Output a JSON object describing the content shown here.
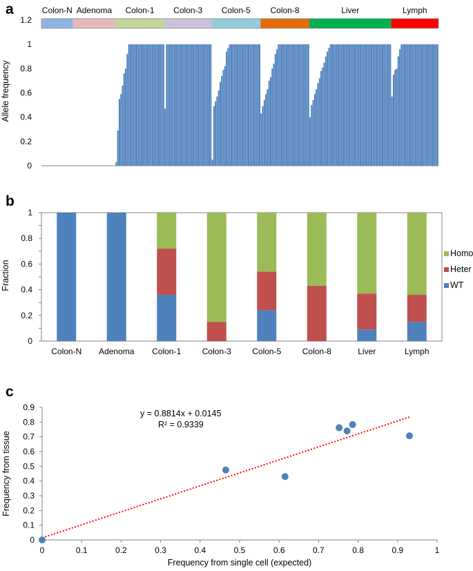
{
  "panel_labels": {
    "a": "a",
    "b": "b",
    "c": "c"
  },
  "chart_data": [
    {
      "type": "bar",
      "title": "",
      "ylabel": "Allele frequency",
      "xlabel": "",
      "ylim": [
        0,
        1.2
      ],
      "yticks": [
        "0",
        "0.2",
        "0.4",
        "0.6",
        "0.8",
        "1",
        "1.2"
      ],
      "groups": [
        {
          "name": "Colon-N",
          "color": "#8db3e2",
          "values": [
            0,
            0,
            0,
            0,
            0,
            0,
            0,
            0,
            0,
            0,
            0,
            0,
            0,
            0,
            0,
            0,
            0,
            0,
            0,
            0
          ]
        },
        {
          "name": "Adenoma",
          "color": "#e6b9b8",
          "values": [
            0,
            0,
            0,
            0,
            0,
            0,
            0,
            0,
            0,
            0,
            0,
            0,
            0,
            0,
            0,
            0,
            0,
            0,
            0,
            0,
            0,
            0,
            0,
            0,
            0,
            0,
            0
          ]
        },
        {
          "name": "Colon-1",
          "color": "#c3d69b",
          "values": [
            0.03,
            0.29,
            0.55,
            0.59,
            0.66,
            0.76,
            0.8,
            0.92,
            1,
            1,
            1,
            1,
            1,
            1,
            1,
            1,
            1,
            1,
            1,
            1,
            1,
            1,
            1,
            1,
            1,
            1,
            1,
            1,
            1,
            1,
            1
          ]
        },
        {
          "name": "Colon-3",
          "color": "#ccc0da",
          "values": [
            0.47,
            1,
            1,
            1,
            1,
            1,
            1,
            1,
            1,
            1,
            1,
            1,
            1,
            1,
            1,
            1,
            1,
            1,
            1,
            1,
            1,
            1,
            1,
            1,
            1,
            1,
            1,
            1,
            1,
            1
          ]
        },
        {
          "name": "Colon-5",
          "color": "#92cddc",
          "values": [
            0.05,
            0.49,
            0.53,
            0.57,
            0.62,
            0.69,
            0.74,
            0.79,
            0.82,
            0.94,
            0.97,
            1,
            1,
            1,
            1,
            1,
            1,
            1,
            1,
            1,
            1,
            1,
            1,
            1,
            1,
            1,
            1,
            1,
            1,
            1,
            1
          ]
        },
        {
          "name": "Colon-8",
          "color": "#e36c09",
          "values": [
            0.43,
            0.49,
            0.54,
            0.59,
            0.63,
            0.7,
            0.73,
            0.8,
            0.84,
            0.92,
            0.96,
            1,
            1,
            1,
            1,
            1,
            1,
            1,
            1,
            1,
            1,
            1,
            1,
            1,
            1,
            1,
            1,
            1,
            1,
            1,
            1
          ]
        },
        {
          "name": "Liver",
          "color": "#00b050",
          "values": [
            0.4,
            0.5,
            0.54,
            0.59,
            0.63,
            0.68,
            0.72,
            0.78,
            0.81,
            0.85,
            0.9,
            0.94,
            0.97,
            1,
            1,
            1,
            1,
            1,
            1,
            1,
            1,
            1,
            1,
            1,
            1,
            1,
            1,
            1,
            1,
            1,
            1,
            1,
            1,
            1,
            1,
            1,
            1,
            1,
            1,
            1,
            1,
            1,
            1,
            1,
            1,
            1,
            1,
            1,
            1,
            1,
            1,
            1
          ]
        },
        {
          "name": "Lymph",
          "color": "#ff0000",
          "values": [
            0.57,
            0.75,
            0.79,
            0.8,
            0.9,
            0.96,
            1,
            1,
            1,
            1,
            1,
            1,
            1,
            1,
            1,
            1,
            1,
            1,
            1,
            1,
            1,
            1,
            1,
            1,
            1,
            1,
            1,
            1,
            1,
            1
          ]
        }
      ]
    },
    {
      "type": "bar",
      "stacked": true,
      "title": "",
      "ylabel": "Fraction",
      "xlabel": "",
      "ylim": [
        0,
        1
      ],
      "yticks": [
        "0",
        "0.2",
        "0.4",
        "0.6",
        "0.8",
        "1"
      ],
      "categories": [
        "Colon-N",
        "Adenoma",
        "Colon-1",
        "Colon-3",
        "Colon-5",
        "Colon-8",
        "Liver",
        "Lymph"
      ],
      "series": [
        {
          "name": "WT",
          "color": "#4f81bd",
          "values": [
            1,
            1,
            0.36,
            0,
            0.24,
            0,
            0.09,
            0.15
          ]
        },
        {
          "name": "Heter",
          "color": "#c0504d",
          "values": [
            0,
            0,
            0.36,
            0.15,
            0.3,
            0.43,
            0.28,
            0.21
          ]
        },
        {
          "name": "Homo",
          "color": "#9bbb59",
          "values": [
            0,
            0,
            0.28,
            0.85,
            0.46,
            0.57,
            0.63,
            0.64
          ]
        }
      ],
      "legend": [
        "Homo",
        "Heter",
        "WT"
      ],
      "legend_position": "right"
    },
    {
      "type": "scatter",
      "title": "",
      "xlabel": "Frequency from single cell (expected)",
      "ylabel": "Frequency from tissue",
      "xlim": [
        0,
        1
      ],
      "ylim": [
        0,
        0.9
      ],
      "xticks": [
        "0",
        "0.1",
        "0.2",
        "0.3",
        "0.4",
        "0.5",
        "0.6",
        "0.7",
        "0.8",
        "0.9",
        "1"
      ],
      "yticks": [
        "0",
        "0.1",
        "0.2",
        "0.3",
        "0.4",
        "0.5",
        "0.6",
        "0.7",
        "0.8",
        "0.9"
      ],
      "x": [
        0,
        0.465,
        0.615,
        0.752,
        0.772,
        0.786,
        0.93
      ],
      "y": [
        0,
        0.475,
        0.43,
        0.762,
        0.74,
        0.783,
        0.707
      ],
      "point_color": "#4f81bd",
      "trendline": {
        "slope": 0.8814,
        "intercept": 0.0145,
        "x_range": [
          0,
          0.93
        ],
        "color": "#ff0000"
      },
      "equation": "y = 0.8814x + 0.0145",
      "r_squared": "R² = 0.9339"
    }
  ]
}
